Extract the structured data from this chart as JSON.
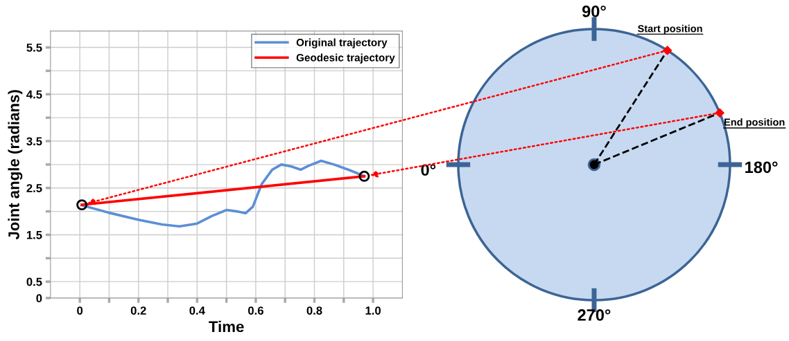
{
  "chart_data": [
    {
      "type": "line",
      "xlabel": "Time",
      "ylabel": "Joint angle (radians)",
      "xlim": [
        -0.1,
        1.1
      ],
      "ylim": [
        0.15,
        5.85
      ],
      "xticks": [
        0,
        {
          "value": 0.1,
          "label": null
        },
        0.2,
        {
          "value": 0.3,
          "label": null
        },
        0.4,
        {
          "value": 0.5,
          "label": null
        },
        0.6,
        {
          "value": 0.7,
          "label": null
        },
        0.8,
        {
          "value": 0.9,
          "label": null
        },
        {
          "value": 1.0,
          "label": "1.0"
        }
      ],
      "yticks": [
        {
          "value": 0.15,
          "label": "0"
        },
        0.5,
        {
          "value": 1.0,
          "label": null
        },
        1.5,
        {
          "value": 2.0,
          "label": null
        },
        2.5,
        {
          "value": 3.0,
          "label": null
        },
        3.5,
        {
          "value": 4.0,
          "label": null
        },
        4.5,
        {
          "value": 5.0,
          "label": null
        },
        5.5
      ],
      "grid": true,
      "legend": "top right",
      "line_style": "solid",
      "series": [
        {
          "name": "Original trajectory",
          "color": "#5b8fd6",
          "x": [
            0.007,
            0.1,
            0.2,
            0.28,
            0.34,
            0.4,
            0.45,
            0.5,
            0.535,
            0.565,
            0.59,
            0.62,
            0.656,
            0.687,
            0.72,
            0.753,
            0.779,
            0.823,
            0.867,
            0.92,
            0.97
          ],
          "values": [
            2.13,
            1.97,
            1.82,
            1.72,
            1.68,
            1.74,
            1.9,
            2.03,
            2.0,
            1.96,
            2.1,
            2.58,
            2.89,
            3.0,
            2.96,
            2.89,
            2.97,
            3.08,
            3.0,
            2.88,
            2.75
          ]
        },
        {
          "name": "Geodesic trajectory",
          "color": "#ff0000",
          "x": [
            0.007,
            0.97
          ],
          "values": [
            2.14,
            2.75
          ]
        },
        {
          "type": "scatter",
          "color": "#000000",
          "marker": "circle",
          "x": [
            0.007,
            0.97
          ],
          "values": [
            2.14,
            2.75
          ]
        }
      ]
    },
    {
      "type": "other",
      "annotations": [
        "0°",
        "90°",
        "180°",
        "270°",
        "Start position",
        "End position"
      ]
    }
  ]
}
